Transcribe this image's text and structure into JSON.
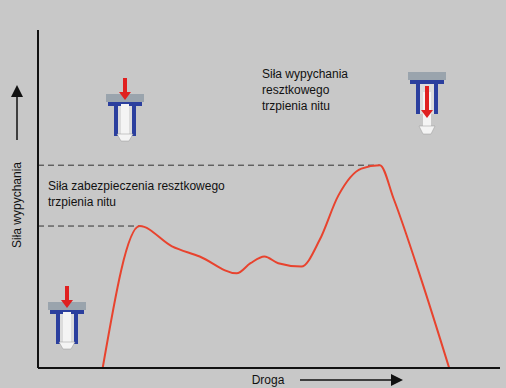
{
  "chart_data": {
    "type": "line",
    "x_label": "Droga",
    "y_label": "Siła wypychania",
    "x": [
      14,
      22,
      29,
      35,
      43,
      46,
      49,
      52,
      57,
      61,
      65,
      70,
      74,
      77,
      83,
      89
    ],
    "values": [
      0,
      42,
      36,
      33,
      28,
      31,
      33,
      31,
      30,
      38,
      51,
      59,
      60,
      50,
      26,
      0
    ],
    "color": "#e8432e",
    "xlim": [
      0,
      100
    ],
    "ylim": [
      0,
      100
    ],
    "tick_labels": false,
    "grid": false,
    "annotations": [
      {
        "text": "Siła zabezpieczenia resztkowego trzpienia nitu",
        "x": 22,
        "y": 42
      },
      {
        "text": "Siła wypychania resztkowego trzpienia nitu",
        "x": 74,
        "y": 60
      }
    ]
  }
}
